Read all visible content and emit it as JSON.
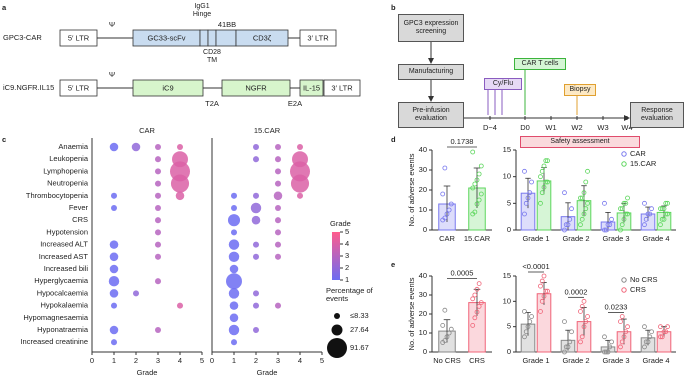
{
  "panel_labels": [
    "a",
    "b",
    "c",
    "d",
    "e"
  ],
  "construct_diagram": {
    "constructs": [
      {
        "name": "GPC3-CAR",
        "ltr5": "5′ LTR",
        "psi": "Ψ",
        "elements": [
          "GC33-scFv",
          "CD3ζ"
        ],
        "ltr3": "3′ LTR",
        "annotations": [
          "IgG1 Hinge",
          "41BB",
          "CD28 TM"
        ]
      },
      {
        "name": "iC9.NGFR.IL15",
        "ltr5": "5′ LTR",
        "psi": "Ψ",
        "elements": [
          "iC9",
          "NGFR",
          "IL-15"
        ],
        "ltr3": "3′ LTR",
        "annotations": [
          "T2A",
          "E2A"
        ]
      }
    ]
  },
  "timeline": {
    "steps": [
      "GPC3 expression screening",
      "Manufacturing",
      "Pre-infusion evaluation"
    ],
    "timepoints": [
      "D−4",
      "D0",
      "W1",
      "W2",
      "W3",
      "W4"
    ],
    "events": [
      "Cy/Flu",
      "CAR T cells",
      "Biopsy"
    ],
    "end": "Response evaluation",
    "safety": "Safety assessment"
  },
  "chart_data": [
    {
      "type": "bubble",
      "title": "CAR",
      "categories": [
        "Anaemia",
        "Leukopenia",
        "Lymphopenia",
        "Neutropenia",
        "Thrombocytopenia",
        "Fever",
        "CRS",
        "Hypotension",
        "Increased ALT",
        "Increased AST",
        "Increased bili",
        "Hyperglycaemia",
        "Hypocalcaemia",
        "Hypokalaemia",
        "Hypomagnesaemia",
        "Hyponatraemia",
        "Increased creatinine"
      ],
      "x": [
        1,
        2,
        3,
        4
      ],
      "sizes": [
        [
          16.67,
          null,
          null,
          null,
          8.33,
          8.33,
          null,
          null,
          16.67,
          16.67,
          16.67,
          25,
          16.67,
          8.33,
          null,
          16.67,
          8.33
        ],
        [
          16.67,
          null,
          null,
          null,
          null,
          null,
          null,
          null,
          null,
          null,
          null,
          null,
          8.33,
          null,
          null,
          null,
          null
        ],
        [
          8.33,
          8.33,
          8.33,
          8.33,
          8.33,
          8.33,
          8.33,
          8.33,
          8.33,
          8.33,
          null,
          8.33,
          null,
          null,
          null,
          8.33,
          null
        ],
        [
          8.33,
          58.33,
          91.67,
          75,
          16.67,
          null,
          null,
          null,
          null,
          null,
          null,
          null,
          null,
          8.33,
          null,
          null,
          null
        ]
      ],
      "xlim": [
        0,
        5
      ],
      "xticks": [
        0,
        1,
        2,
        3,
        4,
        5
      ],
      "xlabel": "Grade",
      "colorscale": [
        "#6c6cf2",
        "#ff5c8d"
      ],
      "clim": [
        1,
        5
      ]
    },
    {
      "type": "bubble",
      "title": "15.CAR",
      "x": [
        1,
        2,
        3,
        4
      ],
      "sizes": [
        [
          null,
          null,
          null,
          null,
          8.33,
          8.33,
          33.33,
          8.33,
          25,
          25,
          16.67,
          58.33,
          25,
          16.67,
          16.67,
          25,
          8.33
        ],
        [
          8.33,
          8.33,
          null,
          null,
          8.33,
          25,
          16.67,
          null,
          8.33,
          8.33,
          null,
          null,
          8.33,
          8.33,
          null,
          8.33,
          null
        ],
        [
          8.33,
          8.33,
          8.33,
          8.33,
          16.67,
          8.33,
          8.33,
          8.33,
          8.33,
          8.33,
          null,
          null,
          null,
          8.33,
          null,
          null,
          null
        ],
        [
          8.33,
          58.33,
          91.67,
          75,
          8.33,
          null,
          null,
          null,
          null,
          null,
          null,
          null,
          null,
          null,
          null,
          null,
          null
        ]
      ],
      "xlim": [
        0,
        5
      ],
      "xticks": [
        0,
        1,
        2,
        3,
        4,
        5
      ],
      "xlabel": "Grade",
      "colorscale": [
        "#6c6cf2",
        "#ff5c8d"
      ],
      "clim": [
        1,
        5
      ],
      "legend": {
        "color_title": "Grade",
        "color_ticks": [
          1,
          2,
          3,
          4,
          5
        ],
        "size_title": "Percentage of events",
        "size_ticks": [
          {
            "value": 8.33,
            "label": "≤8.33"
          },
          27.64,
          91.67
        ]
      }
    },
    {
      "type": "bar",
      "categories": [
        "CAR",
        "15.CAR"
      ],
      "values": [
        13,
        21
      ],
      "errors": [
        9,
        10
      ],
      "points": [
        [
          5,
          6,
          8,
          10,
          13,
          18,
          31
        ],
        [
          8,
          9,
          13,
          15,
          18,
          21,
          23,
          25,
          28,
          32,
          39
        ]
      ],
      "colors": [
        "#7878ee",
        "#5cd65c"
      ],
      "ylabel": "No. of adverse events",
      "ylim": [
        0,
        40
      ],
      "yticks": [
        0,
        10,
        20,
        30,
        40
      ],
      "p_values": [
        "0.1738"
      ]
    },
    {
      "type": "grouped_bar",
      "categories": [
        "Grade 1",
        "Grade 2",
        "Grade 3",
        "Grade 4"
      ],
      "series": [
        {
          "name": "CAR",
          "color": "#7878ee",
          "values": [
            6.9,
            2.5,
            1.5,
            3
          ],
          "errors": [
            2.8,
            2.6,
            1.8,
            1.3
          ],
          "points": [
            [
              3,
              5,
              6,
              7,
              9,
              11
            ],
            [
              0,
              1,
              1,
              2,
              4,
              7
            ],
            [
              0,
              0,
              1,
              1,
              2,
              5
            ],
            [
              1,
              2,
              3,
              3,
              4,
              5
            ]
          ]
        },
        {
          "name": "15.CAR",
          "color": "#5cd65c",
          "values": [
            9.2,
            5.5,
            3.2,
            3.3
          ],
          "errors": [
            2.5,
            2.8,
            1.8,
            1.2
          ],
          "points": [
            [
              5,
              7,
              8,
              9,
              9,
              10,
              11,
              12,
              13,
              13
            ],
            [
              1,
              2,
              3,
              4,
              5,
              6,
              6,
              7,
              9,
              11
            ],
            [
              0,
              1,
              2,
              3,
              3,
              4,
              4,
              5,
              5,
              6
            ],
            [
              1,
              2,
              2,
              3,
              3,
              4,
              4,
              4,
              5,
              5
            ]
          ]
        }
      ],
      "ylim": [
        0,
        15
      ],
      "yticks": [
        0,
        5,
        10,
        15
      ]
    },
    {
      "type": "bar",
      "categories": [
        "No CRS",
        "CRS"
      ],
      "values": [
        11,
        26
      ],
      "errors": [
        6,
        7
      ],
      "points": [
        [
          5,
          6,
          8,
          10,
          12,
          14,
          22
        ],
        [
          14,
          18,
          21,
          24,
          26,
          28,
          30,
          33,
          36
        ]
      ],
      "colors": [
        "#888888",
        "#f06478"
      ],
      "ylabel": "No. of adverse events",
      "ylim": [
        0,
        40
      ],
      "yticks": [
        0,
        10,
        20,
        30,
        40
      ],
      "p_values": [
        "0.0005"
      ]
    },
    {
      "type": "grouped_bar",
      "categories": [
        "Grade 1",
        "Grade 2",
        "Grade 3",
        "Grade 4"
      ],
      "series": [
        {
          "name": "No CRS",
          "color": "#888888",
          "values": [
            5.5,
            2.3,
            1,
            2.8
          ],
          "errors": [
            2.3,
            2,
            1.3,
            1.5
          ],
          "points": [
            [
              3,
              4,
              5,
              6,
              7,
              8
            ],
            [
              0,
              1,
              1,
              2,
              4,
              6
            ],
            [
              0,
              0,
              0,
              1,
              2,
              3
            ],
            [
              1,
              2,
              2,
              3,
              4,
              5
            ]
          ]
        },
        {
          "name": "CRS",
          "color": "#f06478",
          "values": [
            11.5,
            6,
            4,
            4
          ],
          "errors": [
            2.2,
            2.8,
            2.5,
            1
          ],
          "points": [
            [
              8,
              10,
              11,
              12,
              12,
              13,
              14,
              15
            ],
            [
              2,
              3,
              5,
              6,
              7,
              8,
              9,
              10
            ],
            [
              1,
              2,
              3,
              4,
              5,
              6,
              7
            ],
            [
              3,
              3,
              4,
              4,
              5,
              5
            ]
          ]
        }
      ],
      "ylim": [
        0,
        15
      ],
      "yticks": [
        0,
        5,
        10,
        15
      ],
      "p_values": [
        "<0.0001",
        "0.0002",
        "0.0233"
      ]
    }
  ]
}
